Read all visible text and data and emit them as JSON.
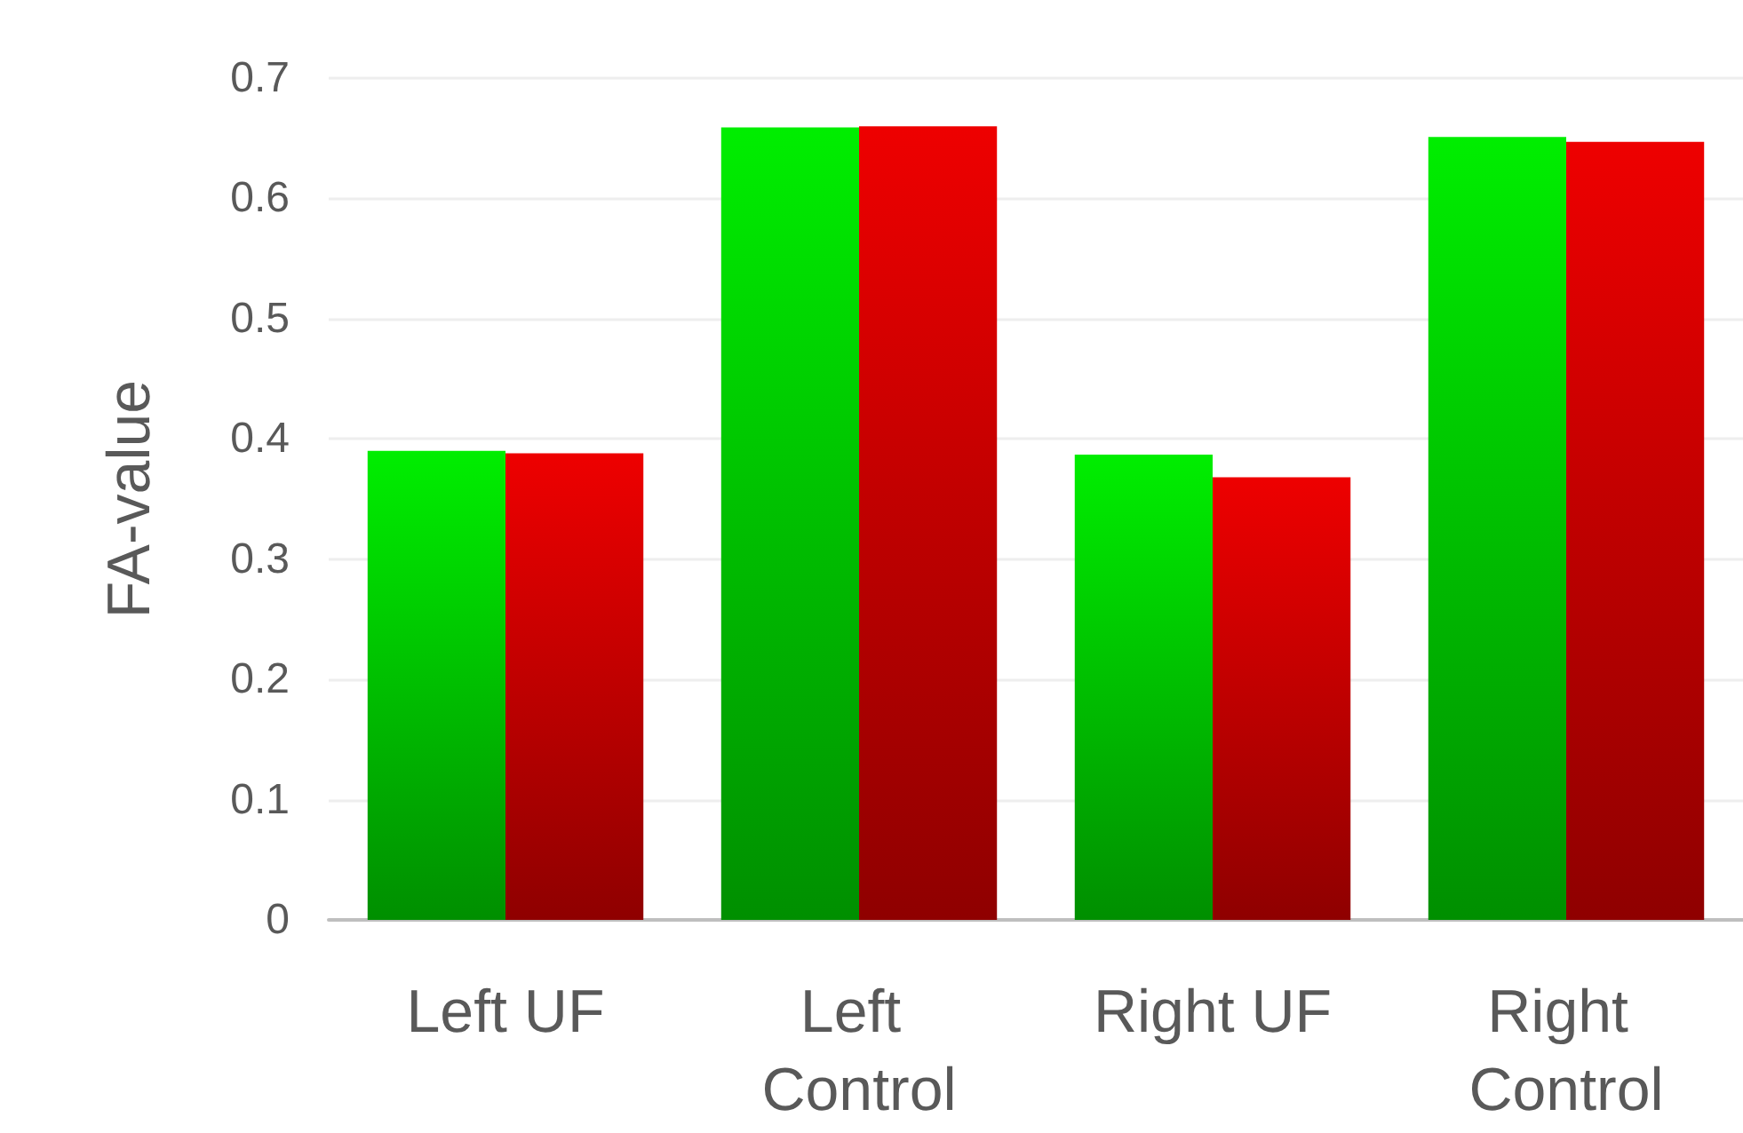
{
  "chart_data": {
    "type": "bar",
    "ylabel": "FA-value",
    "categories": [
      "Left UF",
      "Left Control",
      "Right UF",
      "Right Control"
    ],
    "series": [
      {
        "color": "#00ee00",
        "values": [
          0.39,
          0.659,
          0.387,
          0.651
        ]
      },
      {
        "color": "#ee0000",
        "values": [
          0.388,
          0.66,
          0.368,
          0.647
        ]
      }
    ],
    "ylim": [
      0,
      0.7
    ],
    "yticks": [
      0,
      0.1,
      0.2,
      0.3,
      0.4,
      0.5,
      0.6,
      0.7
    ],
    "grid": "y"
  }
}
